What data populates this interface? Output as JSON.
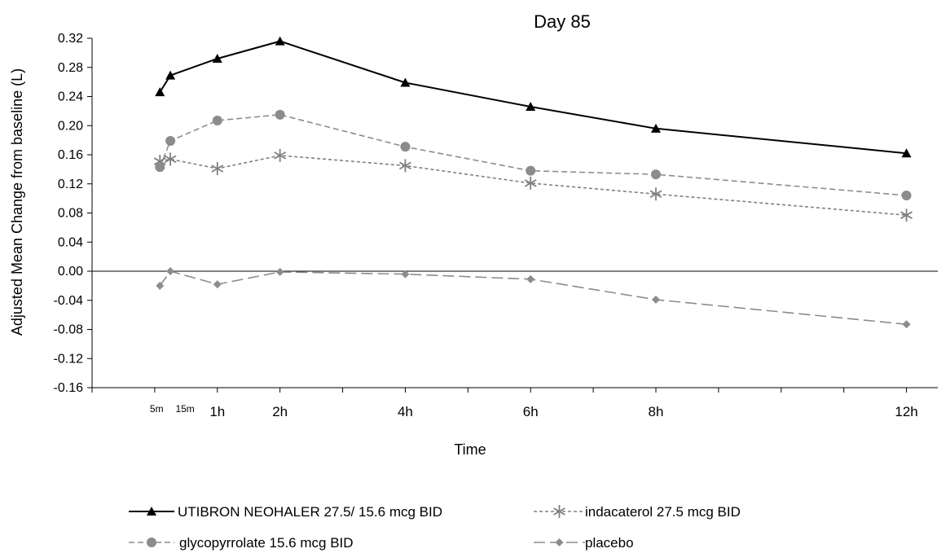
{
  "chart_data": {
    "type": "line",
    "title": "Day 85",
    "xlabel": "Time",
    "ylabel": "Adjusted Mean Change from baseline (L)",
    "ylim": [
      -0.16,
      0.32
    ],
    "yticks": [
      "-0.16",
      "-0.12",
      "-0.08",
      "-0.04",
      "0.00",
      "0.04",
      "0.08",
      "0.12",
      "0.16",
      "0.20",
      "0.24",
      "0.28",
      "0.32"
    ],
    "xlim": [
      -1,
      12.5
    ],
    "xticks": [
      {
        "label": "5m",
        "x": 0.083
      },
      {
        "label": "15m",
        "x": 0.25
      },
      {
        "label": "1h",
        "x": 1
      },
      {
        "label": "2h",
        "x": 2
      },
      {
        "label": "4h",
        "x": 4
      },
      {
        "label": "6h",
        "x": 6
      },
      {
        "label": "8h",
        "x": 8
      },
      {
        "label": "12h",
        "x": 12
      }
    ],
    "x": [
      0.083,
      0.25,
      1,
      2,
      4,
      6,
      8,
      12
    ],
    "grid": false,
    "legend_position": "bottom",
    "series": [
      {
        "name": "UTIBRON NEOHALER 27.5/ 15.6 mcg BID",
        "marker": "triangle",
        "color": "#000000",
        "dash": "solid",
        "values": [
          0.246,
          0.269,
          0.292,
          0.316,
          0.259,
          0.226,
          0.196,
          0.162
        ]
      },
      {
        "name": "indacaterol 27.5 mcg BID",
        "marker": "asterisk",
        "color": "#808080",
        "dash": "short",
        "values": [
          0.151,
          0.154,
          0.141,
          0.159,
          0.145,
          0.121,
          0.106,
          0.077
        ]
      },
      {
        "name": "glycopyrrolate 15.6 mcg BID",
        "marker": "circle",
        "color": "#8c8c8c",
        "dash": "medium",
        "values": [
          0.143,
          0.179,
          0.207,
          0.215,
          0.171,
          0.138,
          0.133,
          0.104
        ]
      },
      {
        "name": "placebo",
        "marker": "diamond",
        "color": "#8c8c8c",
        "dash": "long",
        "values": [
          -0.02,
          0.0,
          -0.018,
          -0.001,
          -0.004,
          -0.011,
          -0.039,
          -0.073
        ]
      }
    ]
  }
}
